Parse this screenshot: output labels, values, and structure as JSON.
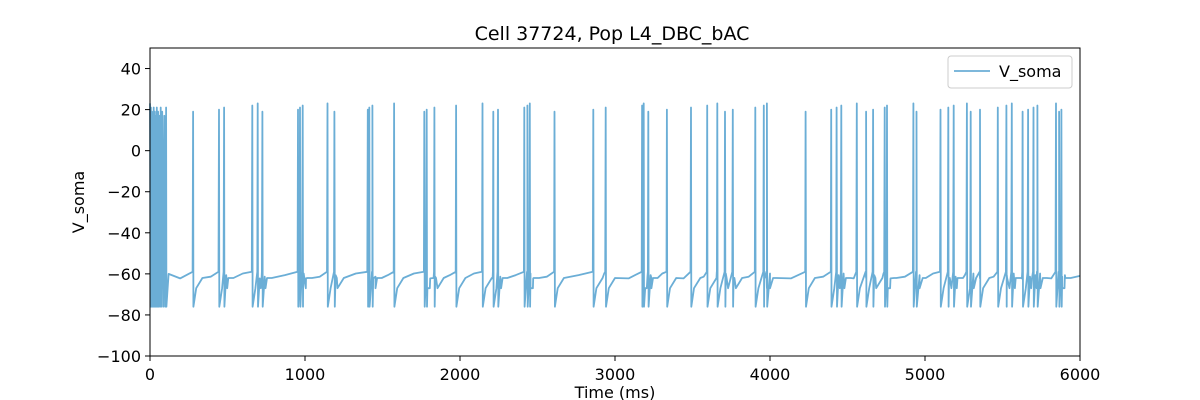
{
  "chart_data": {
    "type": "line",
    "title": "Cell 37724, Pop L4_DBC_bAC",
    "xlabel": "Time (ms)",
    "ylabel": "V_soma",
    "xlim": [
      0,
      6000
    ],
    "ylim": [
      -100,
      50
    ],
    "xticks": [
      0,
      1000,
      2000,
      3000,
      4000,
      5000,
      6000
    ],
    "yticks": [
      -100,
      -80,
      -60,
      -40,
      -20,
      0,
      20,
      40
    ],
    "grid": false,
    "legend": {
      "placement": "top-right",
      "entries": [
        "V_soma"
      ]
    },
    "series": [
      {
        "name": "V_soma",
        "color": "#6baed6",
        "baseline_mV": -61,
        "spike_peak_mV": 21,
        "trough_mV": -76,
        "initial_burst_ms": [
          2,
          8,
          14,
          20,
          27,
          33,
          40,
          48,
          56,
          65,
          75,
          88,
          100
        ],
        "spike_times_ms": [
          100,
          278,
          445,
          478,
          660,
          695,
          725,
          955,
          968,
          985,
          1145,
          1190,
          1405,
          1415,
          1435,
          1575,
          1770,
          1785,
          1835,
          1975,
          2145,
          2215,
          2245,
          2415,
          2435,
          2450,
          2610,
          2860,
          2940,
          3175,
          3185,
          3215,
          3335,
          3490,
          3595,
          3660,
          3710,
          3760,
          3905,
          3960,
          3980,
          4230,
          4395,
          4430,
          4460,
          4560,
          4620,
          4665,
          4740,
          4755,
          4925,
          4945,
          5100,
          5150,
          5185,
          5270,
          5295,
          5355,
          5470,
          5525,
          5560,
          5630,
          5665,
          5700,
          5725,
          5845,
          5865,
          5880
        ]
      }
    ]
  }
}
